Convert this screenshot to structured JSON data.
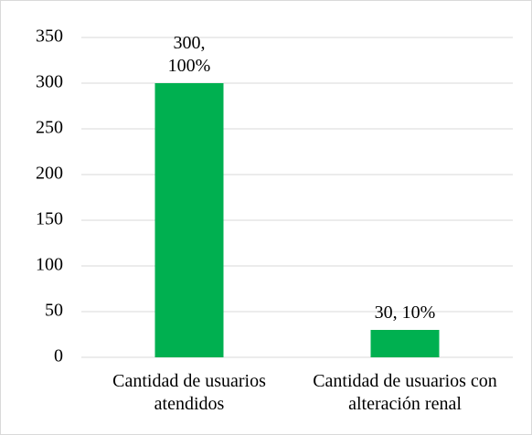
{
  "chart_data": {
    "type": "bar",
    "categories": [
      "Cantidad de usuarios atendidos",
      "Cantidad de usuarios con alteración renal"
    ],
    "values": [
      300,
      30
    ],
    "value_labels": [
      "300, 100%",
      "30, 10%"
    ],
    "color": "#00b050",
    "ylim": [
      0,
      350
    ],
    "yticks": [
      0,
      50,
      100,
      150,
      200,
      250,
      300,
      350
    ],
    "grid": true
  }
}
